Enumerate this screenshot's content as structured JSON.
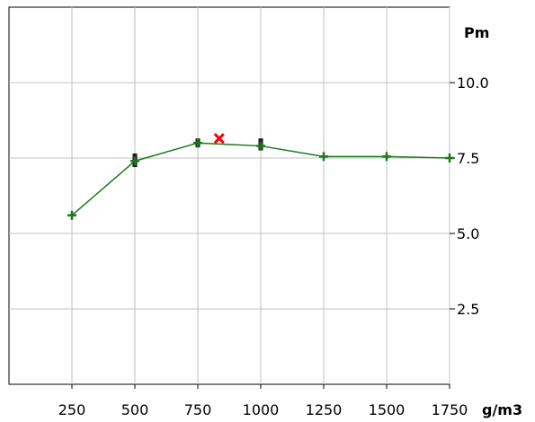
{
  "chart_data": {
    "type": "line",
    "x": [
      250,
      500,
      750,
      1000,
      1250,
      1500,
      1750
    ],
    "series": [
      {
        "values": [
          5.6,
          7.4,
          8.0,
          7.9,
          7.55,
          7.55,
          7.5
        ],
        "color": "#1a7a1a",
        "error_bars": [
          null,
          [
            7.2,
            7.65
          ],
          [
            7.85,
            8.15
          ],
          [
            7.75,
            8.15
          ],
          null,
          null,
          null
        ]
      }
    ],
    "highlight_point": {
      "x": 835,
      "y": 8.15,
      "color": "#ff0000",
      "marker": "x"
    },
    "x_unit": "g/m3",
    "y_unit": "Pm",
    "xlim": [
      0,
      1750
    ],
    "ylim": [
      0,
      12.5
    ],
    "x_ticks": [
      "250",
      "500",
      "750",
      "1000",
      "1250",
      "1500",
      "1750"
    ],
    "y_ticks": [
      "2.5",
      "5.0",
      "7.5",
      "10.0"
    ],
    "y_tick_values": [
      2.5,
      5.0,
      7.5,
      10.0
    ],
    "grid": true,
    "y_axis_side": "right"
  }
}
